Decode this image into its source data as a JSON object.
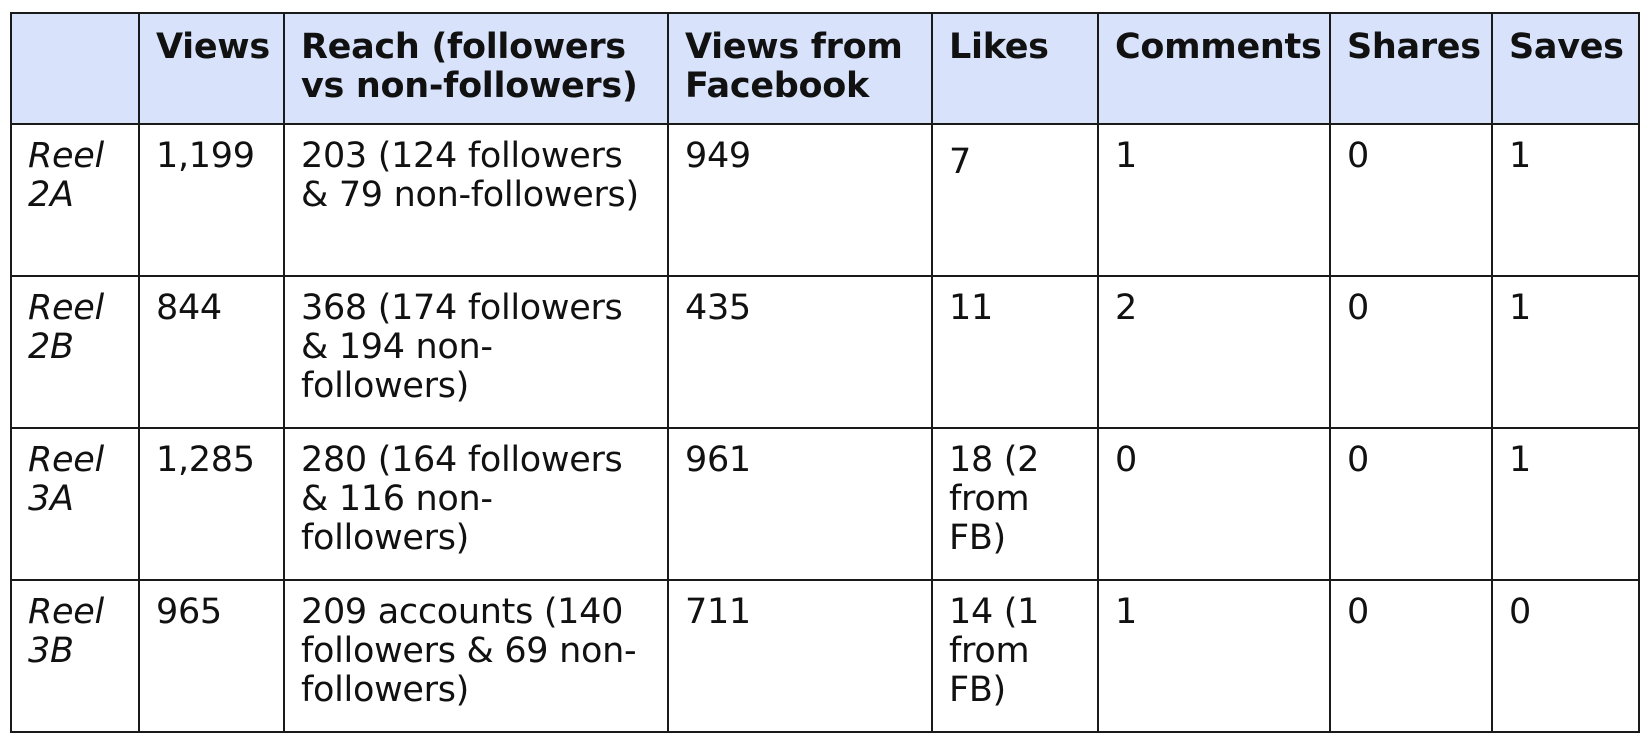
{
  "table": {
    "headers": [
      "",
      "Views",
      "Reach (followers vs non-followers)",
      "Views from Facebook",
      "Likes",
      "Comments",
      "Shares",
      "Saves"
    ],
    "rows": [
      {
        "label": "Reel 2A",
        "views": "1,199",
        "reach": "203 (124 followers & 79 non-followers)",
        "views_from_facebook": "949",
        "likes": "7",
        "comments": "1",
        "shares": "0",
        "saves": "1"
      },
      {
        "label": "Reel 2B",
        "views": "844",
        "reach": "368 (174 followers & 194 non-followers)",
        "views_from_facebook": "435",
        "likes": "11",
        "comments": "2",
        "shares": "0",
        "saves": "1"
      },
      {
        "label": "Reel 3A",
        "views": "1,285",
        "reach": "280 (164 followers & 116 non-followers)",
        "views_from_facebook": "961",
        "likes": "18 (2 from FB)",
        "comments": "0",
        "shares": "0",
        "saves": "1"
      },
      {
        "label": "Reel 3B",
        "views": "965",
        "reach": "209 accounts (140 followers & 69 non-followers)",
        "views_from_facebook": "711",
        "likes": "14 (1 from FB)",
        "comments": "1",
        "shares": "0",
        "saves": "0"
      }
    ]
  }
}
